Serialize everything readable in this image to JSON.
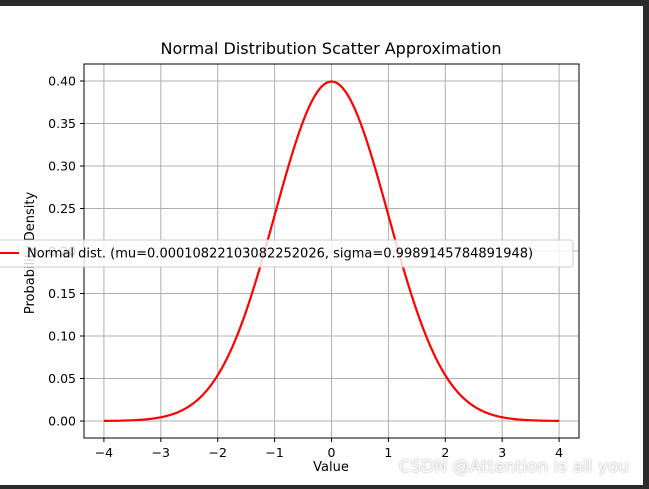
{
  "chart_data": {
    "type": "line",
    "title": "Normal Distribution Scatter Approximation",
    "xlabel": "Value",
    "ylabel": "Probability Density",
    "xlim": [
      -4.35,
      4.35
    ],
    "ylim": [
      -0.02,
      0.42
    ],
    "xticks": [
      -4,
      -3,
      -2,
      -1,
      0,
      1,
      2,
      3,
      4
    ],
    "yticks": [
      0.0,
      0.05,
      0.1,
      0.15,
      0.2,
      0.25,
      0.3,
      0.35,
      0.4
    ],
    "xtick_labels": [
      "−4",
      "−3",
      "−2",
      "−1",
      "0",
      "1",
      "2",
      "3",
      "4"
    ],
    "ytick_labels": [
      "0.00",
      "0.05",
      "0.10",
      "0.15",
      "0.20",
      "0.25",
      "0.30",
      "0.35",
      "0.40"
    ],
    "grid": true,
    "legend_position": "center-left",
    "series": [
      {
        "name": "Normal dist. (mu=0.00010822103082252026, sigma=0.9989145784891948)",
        "color": "#ff0000",
        "mu": 0.00010822103082252026,
        "sigma": 0.9989145784891948,
        "x_range": [
          -4,
          4
        ]
      }
    ]
  },
  "watermark": "CSDN @Attention is all you"
}
